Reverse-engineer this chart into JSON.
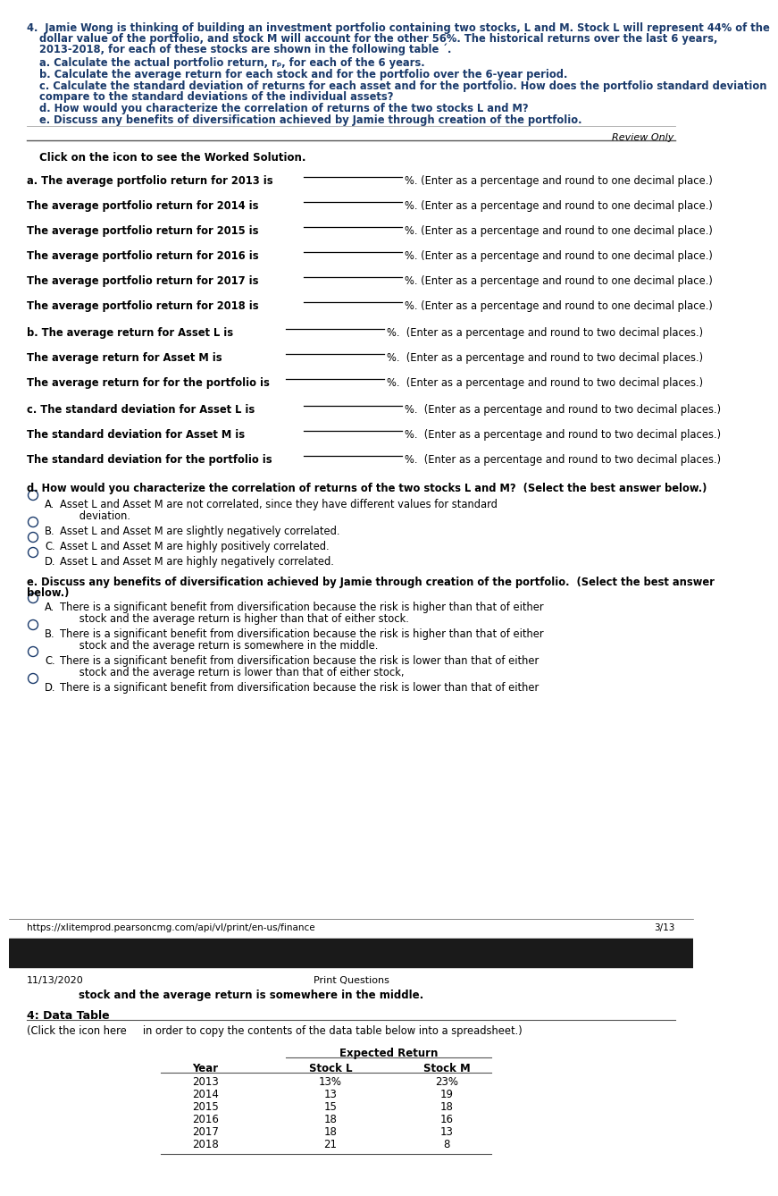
{
  "bg_color": "#ffffff",
  "dark_bar_color": "#1a1a1a",
  "blue": "#1a3a6b",
  "black": "#000000",
  "q_line1": "4.  Jamie Wong is thinking of building an investment portfolio containing two stocks, L and M. Stock L will represent 44% of the",
  "q_line2": "dollar value of the portfolio, and stock M will account for the other 56%. The historical returns over the last 6 years,",
  "q_line3": "2013-2018, for each of these stocks are shown in the following table ´.",
  "q_a": "a. Calculate the actual portfolio return, rₚ, for each of the 6 years.",
  "q_b": "b. Calculate the average return for each stock and for the portfolio over the 6-year period.",
  "q_c1": "c. Calculate the standard deviation of returns for each asset and for the portfolio. How does the portfolio standard deviation",
  "q_c2": "compare to the standard deviations of the individual assets?",
  "q_d": "d. How would you characterize the correlation of returns of the two stocks L and M?",
  "q_e": "e. Discuss any benefits of diversification achieved by Jamie through creation of the portfolio.",
  "review_only": "Review Only",
  "click_text": "Click on the icon to see the Worked Solution.",
  "ans_a_lines": [
    "a. The average portfolio return for 2013 is",
    "The average portfolio return for 2014 is",
    "The average portfolio return for 2015 is",
    "The average portfolio return for 2016 is",
    "The average portfolio return for 2017 is",
    "The average portfolio return for 2018 is"
  ],
  "suffix_1dp": "%. (Enter as a percentage and round to one decimal place.)",
  "ans_b_lines": [
    "b. The average return for Asset L is",
    "The average return for Asset M is",
    "The average return for for the portfolio is"
  ],
  "ans_c_lines": [
    "c. The standard deviation for Asset L is",
    "The standard deviation for Asset M is",
    "The standard deviation for the portfolio is"
  ],
  "suffix_2dp": "%.  (Enter as a percentage and round to two decimal places.)",
  "q_d_full": "d. How would you characterize the correlation of returns of the two stocks L and M?  (Select the best answer below.)",
  "opts_d": [
    [
      "A.",
      "Asset L and Asset M are not correlated, since they have different values for standard",
      "      deviation."
    ],
    [
      "B.",
      "Asset L and Asset M are slightly negatively correlated.",
      ""
    ],
    [
      "C.",
      "Asset L and Asset M are highly positively correlated.",
      ""
    ],
    [
      "D.",
      "Asset L and Asset M are highly negatively correlated.",
      ""
    ]
  ],
  "q_e_line1": "e. Discuss any benefits of diversification achieved by Jamie through creation of the portfolio.  (Select the best answer",
  "q_e_line2": "below.)",
  "opts_e": [
    [
      "A.",
      "There is a significant benefit from diversification because the risk is higher than that of either",
      "      stock and the average return is higher than that of either stock."
    ],
    [
      "B.",
      "There is a significant benefit from diversification because the risk is higher than that of either",
      "      stock and the average return is somewhere in the middle."
    ],
    [
      "C.",
      "There is a significant benefit from diversification because the risk is lower than that of either",
      "      stock and the average return is lower than that of either stock,"
    ],
    [
      "D.",
      "There is a significant benefit from diversification because the risk is lower than that of either",
      ""
    ]
  ],
  "footer_url": "https://xlitemprod.pearsoncmg.com/api/vl/print/en-us/finance",
  "footer_page": "3/13",
  "page2_date": "11/13/2020",
  "page2_center": "Print Questions",
  "page2_continued": "stock and the average return is somewhere in the middle.",
  "data_table_hdr": "4: Data Table",
  "data_table_note": "(Click the icon here     in order to copy the contents of the data table below into a spreadsheet.)",
  "table_title": "Expected Return",
  "table_cols": [
    "Year",
    "Stock L",
    "Stock M"
  ],
  "table_data": [
    [
      "2013",
      "13%",
      "23%"
    ],
    [
      "2014",
      "13",
      "19"
    ],
    [
      "2015",
      "15",
      "18"
    ],
    [
      "2016",
      "18",
      "16"
    ],
    [
      "2017",
      "18",
      "13"
    ],
    [
      "2018",
      "21",
      "8"
    ]
  ]
}
